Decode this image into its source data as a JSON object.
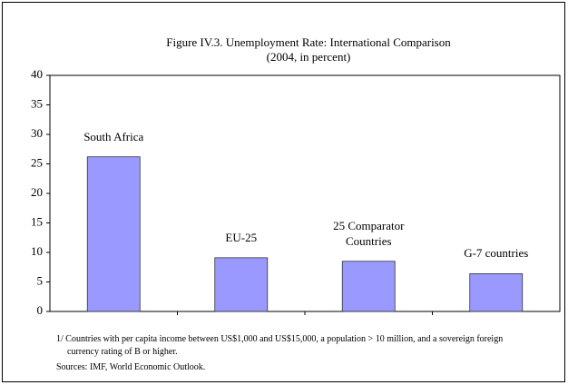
{
  "chart_data": {
    "type": "bar",
    "title": "Figure IV.3. Unemployment Rate: International Comparison",
    "subtitle": "(2004, in percent)",
    "categories": [
      "South Africa",
      "EU-25",
      "25 Comparator Countries",
      "G-7 countries"
    ],
    "values": [
      26.2,
      9.1,
      8.5,
      6.4
    ],
    "color": "#9999ff",
    "ylim": [
      0,
      40
    ],
    "yticks": [
      0,
      5,
      10,
      15,
      20,
      25,
      30,
      35,
      40
    ],
    "grid": false
  },
  "notes": [
    "1/ Countries with per capita income between US$1,000 and US$15,000, a population > 10 million, and a sovereign foreign currency rating of B or higher.",
    "Sources: IMF, World Economic Outlook."
  ]
}
